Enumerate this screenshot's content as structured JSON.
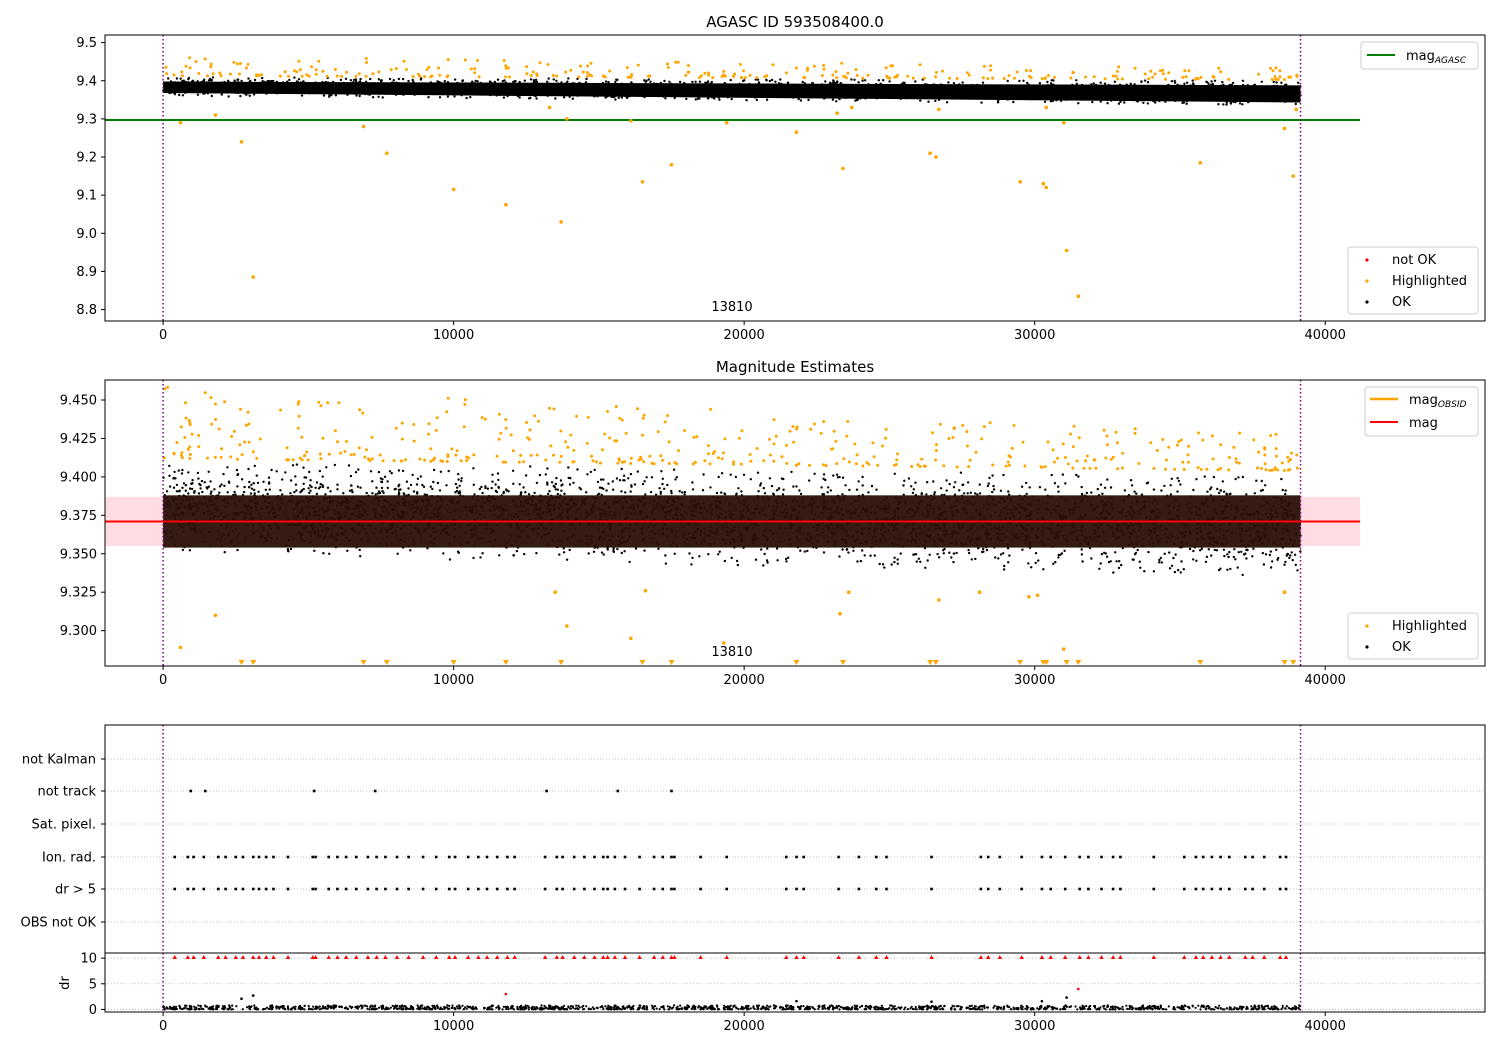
{
  "colors": {
    "ok": "#000000",
    "highlighted": "#ffa500",
    "not_ok": "#ff0000",
    "mag_agasc_line": "#008000",
    "mag_line": "#ff0000",
    "mag_band": "#ffc0cb",
    "obs_lines": "#800080",
    "flag_grid": "#b0b0b0"
  },
  "chart_data": [
    {
      "type": "scatter",
      "title": "AGASC ID 593508400.0",
      "xlim": [
        -2000,
        45500
      ],
      "ylim": [
        8.77,
        9.52
      ],
      "xticks": [
        0,
        10000,
        20000,
        30000,
        40000
      ],
      "xtick_labels": [
        "0",
        "10000",
        "20000",
        "30000",
        "40000"
      ],
      "yticks": [
        8.8,
        8.9,
        9.0,
        9.1,
        9.2,
        9.3,
        9.4,
        9.5
      ],
      "ytick_labels": [
        "8.8",
        "8.9",
        "9.0",
        "9.1",
        "9.2",
        "9.3",
        "9.4",
        "9.5"
      ],
      "obsid_annotation": "13810",
      "obs_boundaries": [
        0,
        39150
      ],
      "hline": {
        "y": 9.297,
        "x": [
          -2000,
          41200
        ],
        "label": "mag",
        "label_sub": "AGASC"
      },
      "legend_upper": "top-right",
      "legend_lower": "bottom-right",
      "series": [
        {
          "name": "not OK",
          "marker": "dot",
          "points": []
        },
        {
          "name": "Highlighted",
          "marker": "dot",
          "points": [
            [
              600,
              9.29
            ],
            [
              1800,
              9.31
            ],
            [
              2700,
              9.24
            ],
            [
              3100,
              8.885
            ],
            [
              6900,
              9.28
            ],
            [
              7700,
              9.21
            ],
            [
              10000,
              9.115
            ],
            [
              11800,
              9.075
            ],
            [
              13300,
              9.33
            ],
            [
              13700,
              9.03
            ],
            [
              13900,
              9.3
            ],
            [
              16100,
              9.295
            ],
            [
              16500,
              9.135
            ],
            [
              17500,
              9.18
            ],
            [
              19400,
              9.29
            ],
            [
              21800,
              9.265
            ],
            [
              23200,
              9.315
            ],
            [
              23400,
              9.17
            ],
            [
              23700,
              9.33
            ],
            [
              26400,
              9.21
            ],
            [
              26600,
              9.2
            ],
            [
              26700,
              9.325
            ],
            [
              29500,
              9.135
            ],
            [
              30300,
              9.13
            ],
            [
              30400,
              9.12
            ],
            [
              30400,
              9.33
            ],
            [
              31000,
              9.29
            ],
            [
              31100,
              8.955
            ],
            [
              31500,
              8.835
            ],
            [
              35700,
              9.185
            ],
            [
              38600,
              9.275
            ],
            [
              38900,
              9.15
            ],
            [
              39000,
              9.325
            ]
          ]
        },
        {
          "name": "OK",
          "marker": "dot",
          "points": []
        }
      ],
      "dense_ok_band": {
        "x_range": [
          0,
          39150
        ],
        "y_start": [
          9.36,
          9.41
        ],
        "y_end": [
          9.335,
          9.4
        ]
      },
      "dense_highlight_fringe": {
        "y_range": [
          9.41,
          9.46
        ]
      }
    },
    {
      "type": "scatter",
      "title": "Magnitude Estimates",
      "xlim": [
        -2000,
        45500
      ],
      "ylim": [
        9.277,
        9.463
      ],
      "xticks": [
        0,
        10000,
        20000,
        30000,
        40000
      ],
      "xtick_labels": [
        "0",
        "10000",
        "20000",
        "30000",
        "40000"
      ],
      "yticks": [
        9.3,
        9.325,
        9.35,
        9.375,
        9.4,
        9.425,
        9.45
      ],
      "ytick_labels": [
        "9.300",
        "9.325",
        "9.350",
        "9.375",
        "9.400",
        "9.425",
        "9.450"
      ],
      "obsid_annotation": "13810",
      "obs_boundaries": [
        0,
        39150
      ],
      "hline_mag": {
        "y": 9.371,
        "x": [
          -2000,
          41200
        ],
        "label": "mag"
      },
      "band": {
        "y": [
          9.355,
          9.387
        ],
        "x": [
          -2000,
          41200
        ]
      },
      "mag_obsid_label": "mag",
      "mag_obsid_sub": "OBSID",
      "legend_upper": "top-right",
      "legend_lower": "bottom-right",
      "series": [
        {
          "name": "Highlighted",
          "marker": "dot",
          "points": [
            [
              600,
              9.289
            ],
            [
              1800,
              9.31
            ],
            [
              13500,
              9.325
            ],
            [
              13900,
              9.303
            ],
            [
              16100,
              9.295
            ],
            [
              16600,
              9.326
            ],
            [
              19300,
              9.292
            ],
            [
              23300,
              9.311
            ],
            [
              23600,
              9.325
            ],
            [
              26700,
              9.32
            ],
            [
              28100,
              9.325
            ],
            [
              29800,
              9.322
            ],
            [
              30100,
              9.323
            ],
            [
              31000,
              9.288
            ],
            [
              38600,
              9.325
            ]
          ]
        },
        {
          "name": "Highlighted (below axis)",
          "marker": "triangle-down",
          "points": [
            [
              2700,
              9.277
            ],
            [
              3100,
              9.277
            ],
            [
              6900,
              9.277
            ],
            [
              7700,
              9.277
            ],
            [
              10000,
              9.277
            ],
            [
              11800,
              9.277
            ],
            [
              13700,
              9.277
            ],
            [
              16500,
              9.277
            ],
            [
              17500,
              9.277
            ],
            [
              21800,
              9.277
            ],
            [
              23400,
              9.277
            ],
            [
              26400,
              9.277
            ],
            [
              26600,
              9.277
            ],
            [
              29500,
              9.277
            ],
            [
              30300,
              9.277
            ],
            [
              30400,
              9.277
            ],
            [
              31100,
              9.277
            ],
            [
              31500,
              9.277
            ],
            [
              35700,
              9.277
            ],
            [
              38600,
              9.277
            ],
            [
              38900,
              9.277
            ]
          ]
        },
        {
          "name": "OK",
          "marker": "dot",
          "points": []
        }
      ],
      "dense_ok_band": {
        "x_range": [
          0,
          39150
        ],
        "y_start": [
          9.35,
          9.41
        ],
        "y_end": [
          9.335,
          9.4
        ]
      },
      "dense_core": {
        "y": [
          9.354,
          9.388
        ]
      }
    },
    {
      "type": "scatter",
      "title": "",
      "xlim": [
        -2000,
        45500
      ],
      "obs_boundaries": [
        0,
        39150
      ],
      "categories": [
        "not Kalman",
        "not track",
        "Sat. pixel.",
        "Ion. rad.",
        "dr > 5",
        "OBS not OK"
      ],
      "flag_x": {
        "not Kalman": [],
        "not track": [
          950,
          1450,
          5200,
          7300,
          13200,
          15650,
          17500
        ],
        "Sat. pixel.": [],
        "Ion. rad.": [
          400,
          850,
          1050,
          1400,
          1900,
          2150,
          2500,
          2750,
          3100,
          3300,
          3550,
          3800,
          4300,
          5150,
          5250,
          5700,
          6000,
          6300,
          6650,
          7050,
          7350,
          7650,
          8050,
          8450,
          8950,
          9400,
          9850,
          10050,
          10500,
          10850,
          11150,
          11500,
          11850,
          12100,
          13150,
          13550,
          13750,
          14150,
          14500,
          14850,
          15150,
          15300,
          15550,
          15900,
          16400,
          16900,
          17200,
          17500,
          17600,
          18500,
          19400,
          21450,
          21800,
          22050,
          23250,
          23950,
          24550,
          24900,
          26450,
          28150,
          28400,
          28800,
          29550,
          30250,
          30550,
          31050,
          31550,
          31850,
          32300,
          32700,
          32950,
          34100,
          35150,
          35550,
          35800,
          36100,
          36400,
          36700,
          37250,
          37500,
          37900,
          38450,
          38650
        ],
        "dr > 5": [
          400,
          850,
          1050,
          1400,
          1900,
          2150,
          2500,
          2750,
          3100,
          3300,
          3550,
          3800,
          4300,
          5150,
          5250,
          5700,
          6000,
          6300,
          6650,
          7050,
          7350,
          7650,
          8050,
          8450,
          8950,
          9400,
          9850,
          10050,
          10500,
          10850,
          11150,
          11500,
          11850,
          12100,
          13150,
          13550,
          13750,
          14150,
          14500,
          14850,
          15150,
          15300,
          15550,
          15900,
          16400,
          16900,
          17200,
          17500,
          17600,
          18500,
          19400,
          21450,
          21800,
          22050,
          23250,
          23950,
          24550,
          24900,
          26450,
          28150,
          28400,
          28800,
          29550,
          30250,
          30550,
          31050,
          31550,
          31850,
          32300,
          32700,
          32950,
          34100,
          35150,
          35550,
          35800,
          36100,
          36400,
          36700,
          37250,
          37500,
          37900,
          38450,
          38650
        ],
        "OBS not OK": []
      }
    },
    {
      "type": "scatter",
      "title": "",
      "ylabel": "dr",
      "xlim": [
        -2000,
        45500
      ],
      "ylim": [
        -0.5,
        11
      ],
      "xticks": [
        0,
        10000,
        20000,
        30000,
        40000
      ],
      "xtick_labels": [
        "0",
        "10000",
        "20000",
        "30000",
        "40000"
      ],
      "yticks": [
        0,
        5,
        10
      ],
      "ytick_labels": [
        "0",
        "5",
        "10"
      ],
      "obs_boundaries": [
        0,
        39150
      ],
      "series": [
        {
          "name": "OK",
          "marker": "dot",
          "points": [
            [
              2700,
              2.1
            ],
            [
              3100,
              2.7
            ],
            [
              21800,
              1.6
            ],
            [
              26450,
              1.5
            ],
            [
              30250,
              1.6
            ],
            [
              31100,
              2.3
            ]
          ]
        },
        {
          "name": "not OK",
          "marker": "dot",
          "points": [
            [
              11800,
              3.0
            ],
            [
              31500,
              4.0
            ]
          ]
        },
        {
          "name": "not OK (above axis)",
          "marker": "triangle-up",
          "x": [
            400,
            850,
            1050,
            1400,
            1900,
            2150,
            2500,
            2750,
            3100,
            3300,
            3550,
            3800,
            4300,
            5150,
            5250,
            5700,
            6000,
            6300,
            6650,
            7050,
            7350,
            7650,
            8050,
            8450,
            8950,
            9400,
            9850,
            10050,
            10500,
            10850,
            11150,
            11500,
            11850,
            12100,
            13150,
            13550,
            13750,
            14150,
            14500,
            14850,
            15150,
            15300,
            15550,
            15900,
            16400,
            16900,
            17200,
            17500,
            17600,
            18500,
            19400,
            21450,
            21800,
            22050,
            23250,
            23950,
            24550,
            24900,
            26450,
            28150,
            28400,
            28800,
            29550,
            30250,
            30550,
            31050,
            31550,
            31850,
            32300,
            32700,
            32950,
            34100,
            35150,
            35550,
            35800,
            36100,
            36400,
            36700,
            37250,
            37500,
            37900,
            38450,
            38650
          ]
        }
      ],
      "dense_ok_band": {
        "x_range": [
          0,
          39150
        ],
        "y": [
          0,
          0.8
        ]
      }
    }
  ],
  "legend_labels": {
    "mag": "mag",
    "agasc_sub": "AGASC",
    "obsid_sub": "OBSID",
    "not_ok": "not OK",
    "highlighted": "Highlighted",
    "ok": "OK"
  }
}
